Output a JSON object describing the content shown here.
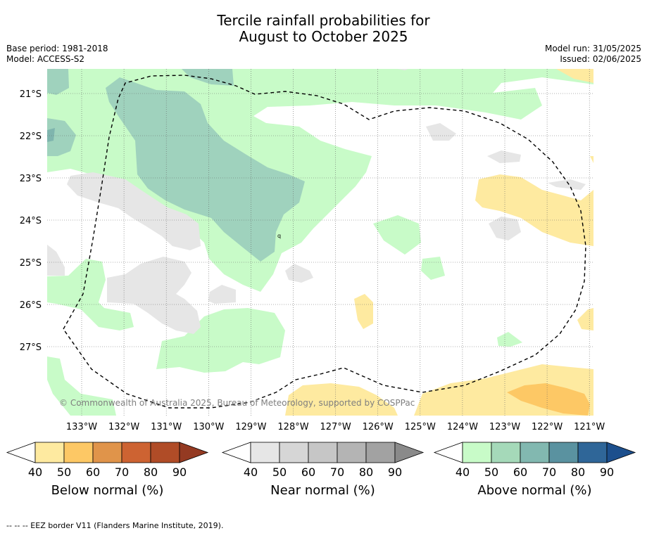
{
  "title": {
    "line1": "Tercile rainfall probabilities for",
    "line2": "August to October 2025"
  },
  "meta": {
    "base_period": "Base period: 1981-2018",
    "model": "Model: ACCESS-S2",
    "model_run": "Model run: 31/05/2025",
    "issued": "Issued: 02/06/2025"
  },
  "map": {
    "attribution": "© Commonwealth of Australia 2025, Bureau of Meteorology, supported by COSPPac",
    "lon_ticks": [
      "133°W",
      "132°W",
      "131°W",
      "130°W",
      "129°W",
      "128°W",
      "127°W",
      "126°W",
      "125°W",
      "124°W",
      "123°W",
      "122°W",
      "121°W"
    ],
    "lat_ticks": [
      "21°S",
      "22°S",
      "23°S",
      "24°S",
      "25°S",
      "26°S",
      "27°S"
    ],
    "small_mark": "q",
    "colors": {
      "above_40": "#c8fbc8",
      "above_50": "#9fd2bd",
      "above_60": "#7fb5ae",
      "below_40": "#feeaa0",
      "below_50": "#fdc865",
      "near_40": "#e6e6e6",
      "eez_border": "#000000"
    }
  },
  "colorbars": [
    {
      "label": "Below normal (%)",
      "ticks": [
        "40",
        "50",
        "60",
        "70",
        "80",
        "90"
      ],
      "colors": [
        "#feeaa0",
        "#fdc865",
        "#e0944a",
        "#cd6332",
        "#b04c27",
        "#943a22"
      ]
    },
    {
      "label": "Near normal (%)",
      "ticks": [
        "40",
        "50",
        "60",
        "70",
        "80",
        "90"
      ],
      "colors": [
        "#e6e6e6",
        "#d6d6d6",
        "#c6c6c6",
        "#b4b4b4",
        "#a2a2a2",
        "#8a8a8a"
      ]
    },
    {
      "label": "Above normal (%)",
      "ticks": [
        "40",
        "50",
        "60",
        "70",
        "80",
        "90"
      ],
      "colors": [
        "#c8fbc8",
        "#a5d9b9",
        "#82b8b0",
        "#5a92a0",
        "#2f6698",
        "#1c4f8d"
      ]
    }
  ],
  "footer": "--  --  -- EEZ border V11 (Flanders Marine Institute, 2019)."
}
